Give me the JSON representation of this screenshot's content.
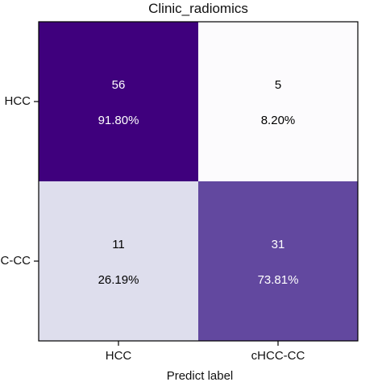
{
  "chart_data": {
    "type": "heatmap",
    "title": "Clinic_radiomics",
    "xlabel": "Predict label",
    "ylabel": "",
    "x_categories": [
      "HCC",
      "cHCC-CC"
    ],
    "y_categories": [
      "HCC",
      "cHCC-CC"
    ],
    "values": [
      [
        56,
        5
      ],
      [
        11,
        31
      ]
    ],
    "percentages": [
      [
        "91.80%",
        "8.20%"
      ],
      [
        "26.19%",
        "73.81%"
      ]
    ],
    "colormap": "Purples",
    "colors": {
      "cells": [
        [
          "#3f007d",
          "#fcfbfd"
        ],
        [
          "#dedeed",
          "#62489f"
        ]
      ],
      "text": [
        [
          "#ffffff",
          "#000000"
        ],
        [
          "#000000",
          "#ffffff"
        ]
      ]
    }
  }
}
